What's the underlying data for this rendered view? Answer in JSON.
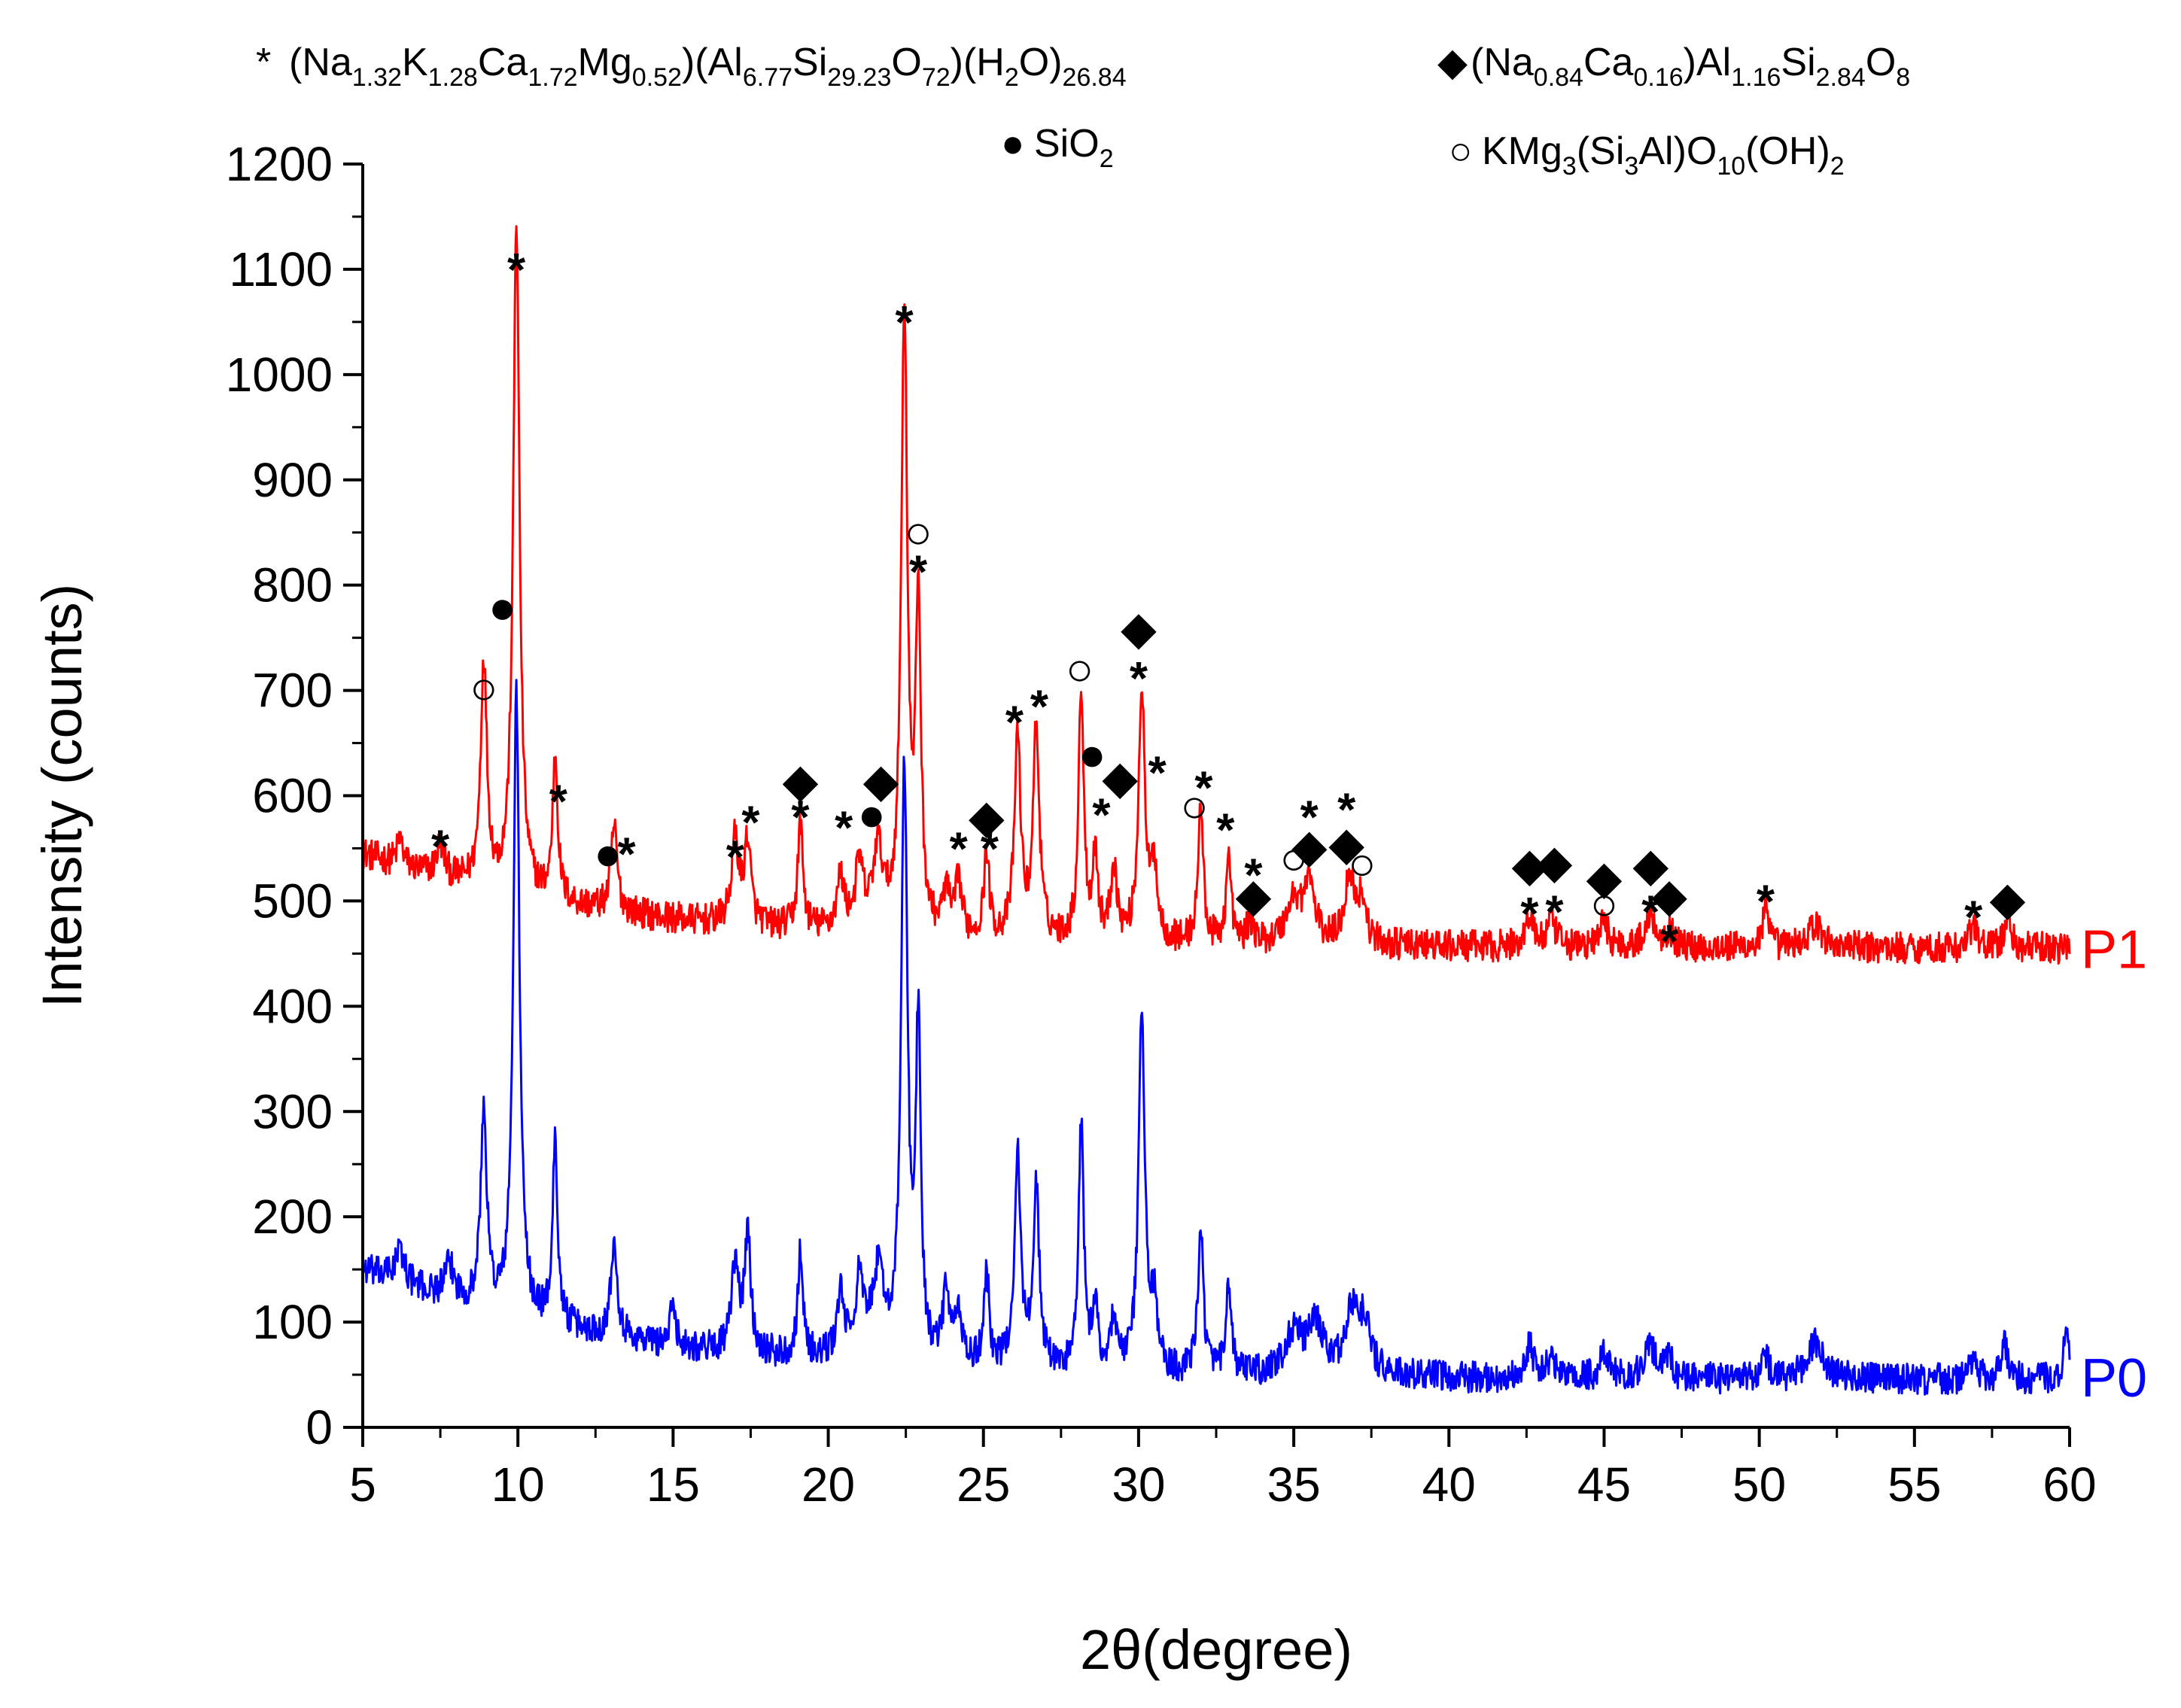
{
  "chart_data": {
    "type": "line",
    "title": "",
    "xlabel": "2θ(degree)",
    "ylabel": "Intensity (counts)",
    "xlim": [
      5,
      60
    ],
    "ylim": [
      0,
      1200
    ],
    "xticks": [
      5,
      10,
      15,
      20,
      25,
      30,
      35,
      40,
      45,
      50,
      55,
      60
    ],
    "yticks": [
      0,
      100,
      200,
      300,
      400,
      500,
      600,
      700,
      800,
      900,
      1000,
      1100,
      1200
    ],
    "baselines": {
      "P1": 455,
      "P0": 50
    },
    "legend": [
      {
        "symbol": "*",
        "name": "asterisk",
        "parts": [
          [
            "n",
            "(Na"
          ],
          [
            "s",
            "1.32"
          ],
          [
            "n",
            "K"
          ],
          [
            "s",
            "1.28"
          ],
          [
            "n",
            "Ca"
          ],
          [
            "s",
            "1.72"
          ],
          [
            "n",
            "Mg"
          ],
          [
            "s",
            "0.52"
          ],
          [
            "n",
            ")(Al"
          ],
          [
            "s",
            "6.77"
          ],
          [
            "n",
            "Si"
          ],
          [
            "s",
            "29.23"
          ],
          [
            "n",
            "O"
          ],
          [
            "s",
            "72"
          ],
          [
            "n",
            ")(H"
          ],
          [
            "s",
            "2"
          ],
          [
            "n",
            "O)"
          ],
          [
            "s",
            "26.84"
          ]
        ]
      },
      {
        "symbol": "◆",
        "name": "diamond",
        "parts": [
          [
            "n",
            "(Na"
          ],
          [
            "s",
            "0.84"
          ],
          [
            "n",
            "Ca"
          ],
          [
            "s",
            "0.16"
          ],
          [
            "n",
            ")Al"
          ],
          [
            "s",
            "1.16"
          ],
          [
            "n",
            "Si"
          ],
          [
            "s",
            "2.84"
          ],
          [
            "n",
            "O"
          ],
          [
            "s",
            "8"
          ]
        ]
      },
      {
        "symbol": "●",
        "name": "filled-circle",
        "parts": [
          [
            "n",
            "SiO"
          ],
          [
            "s",
            "2"
          ]
        ]
      },
      {
        "symbol": "○",
        "name": "open-circle",
        "parts": [
          [
            "n",
            "KMg"
          ],
          [
            "s",
            "3"
          ],
          [
            "n",
            "(Si"
          ],
          [
            "s",
            "3"
          ],
          [
            "n",
            "Al)O"
          ],
          [
            "s",
            "10"
          ],
          [
            "n",
            "(OH)"
          ],
          [
            "s",
            "2"
          ]
        ]
      }
    ],
    "series": [
      {
        "name": "P1",
        "color": "#ff0000",
        "start_value": 545,
        "end_value": 455,
        "peaks": [
          [
            6.2,
            25,
            0.12
          ],
          [
            7.5,
            30,
            0.15
          ],
          [
            8.9,
            215,
            0.12
          ],
          [
            9.95,
            640,
            0.12
          ],
          [
            11.2,
            135,
            0.1
          ],
          [
            13.1,
            80,
            0.12
          ],
          [
            17.0,
            80,
            0.14
          ],
          [
            17.4,
            80,
            0.12
          ],
          [
            19.1,
            100,
            0.1
          ],
          [
            20.4,
            50,
            0.14
          ],
          [
            21.0,
            60,
            0.15
          ],
          [
            21.6,
            75,
            0.2
          ],
          [
            22.45,
            590,
            0.12
          ],
          [
            22.9,
            310,
            0.1
          ],
          [
            23.8,
            40,
            0.12
          ],
          [
            24.2,
            50,
            0.12
          ],
          [
            25.1,
            80,
            0.1
          ],
          [
            26.1,
            190,
            0.12
          ],
          [
            26.7,
            200,
            0.12
          ],
          [
            28.15,
            240,
            0.1
          ],
          [
            28.6,
            80,
            0.1
          ],
          [
            29.2,
            70,
            0.12
          ],
          [
            30.1,
            240,
            0.12
          ],
          [
            30.5,
            70,
            0.12
          ],
          [
            32.0,
            130,
            0.1
          ],
          [
            32.9,
            80,
            0.1
          ],
          [
            33.6,
            20,
            0.12
          ],
          [
            35.0,
            40,
            0.3
          ],
          [
            35.5,
            55,
            0.2
          ],
          [
            36.8,
            65,
            0.2
          ],
          [
            37.2,
            40,
            0.15
          ],
          [
            42.6,
            30,
            0.15
          ],
          [
            43.3,
            25,
            0.15
          ],
          [
            45.0,
            25,
            0.15
          ],
          [
            46.5,
            30,
            0.2
          ],
          [
            47.1,
            15,
            0.15
          ],
          [
            50.2,
            35,
            0.12
          ],
          [
            51.8,
            20,
            0.3
          ],
          [
            56.9,
            25,
            0.12
          ],
          [
            58.0,
            30,
            0.12
          ]
        ]
      },
      {
        "name": "P0",
        "color": "#0000ff",
        "start_value": 150,
        "end_value": 45,
        "peaks": [
          [
            6.2,
            30,
            0.2
          ],
          [
            7.8,
            30,
            0.2
          ],
          [
            8.9,
            185,
            0.12
          ],
          [
            9.95,
            590,
            0.12
          ],
          [
            11.2,
            170,
            0.1
          ],
          [
            13.1,
            95,
            0.12
          ],
          [
            15.0,
            40,
            0.1
          ],
          [
            17.0,
            80,
            0.14
          ],
          [
            17.4,
            110,
            0.12
          ],
          [
            19.1,
            100,
            0.1
          ],
          [
            20.4,
            60,
            0.14
          ],
          [
            21.0,
            70,
            0.15
          ],
          [
            21.6,
            80,
            0.25
          ],
          [
            22.45,
            560,
            0.12
          ],
          [
            22.9,
            310,
            0.1
          ],
          [
            23.8,
            70,
            0.12
          ],
          [
            24.2,
            50,
            0.12
          ],
          [
            25.1,
            90,
            0.1
          ],
          [
            26.1,
            200,
            0.12
          ],
          [
            26.7,
            170,
            0.12
          ],
          [
            28.15,
            230,
            0.1
          ],
          [
            28.6,
            60,
            0.1
          ],
          [
            29.2,
            50,
            0.12
          ],
          [
            30.1,
            340,
            0.12
          ],
          [
            30.5,
            60,
            0.12
          ],
          [
            32.0,
            145,
            0.1
          ],
          [
            32.9,
            80,
            0.1
          ],
          [
            35.0,
            40,
            0.3
          ],
          [
            35.7,
            45,
            0.3
          ],
          [
            36.9,
            60,
            0.3
          ],
          [
            37.3,
            40,
            0.2
          ],
          [
            42.6,
            30,
            0.15
          ],
          [
            43.3,
            20,
            0.15
          ],
          [
            45.0,
            25,
            0.15
          ],
          [
            46.5,
            30,
            0.25
          ],
          [
            47.1,
            15,
            0.15
          ],
          [
            50.2,
            20,
            0.15
          ],
          [
            51.8,
            35,
            0.3
          ],
          [
            56.9,
            15,
            0.15
          ],
          [
            57.9,
            35,
            0.12
          ],
          [
            59.9,
            40,
            0.12
          ]
        ]
      }
    ],
    "annotations": [
      {
        "x": 7.5,
        "y": 562,
        "s": "*"
      },
      {
        "x": 8.9,
        "y": 700,
        "s": "○"
      },
      {
        "x": 9.5,
        "y": 777,
        "s": "●"
      },
      {
        "x": 9.95,
        "y": 1110,
        "s": "*"
      },
      {
        "x": 11.3,
        "y": 605,
        "s": "*"
      },
      {
        "x": 12.9,
        "y": 543,
        "s": "●"
      },
      {
        "x": 13.5,
        "y": 555,
        "s": "*"
      },
      {
        "x": 17.0,
        "y": 552,
        "s": "*"
      },
      {
        "x": 17.5,
        "y": 585,
        "s": "*"
      },
      {
        "x": 19.1,
        "y": 612,
        "s": "◆"
      },
      {
        "x": 19.1,
        "y": 590,
        "s": "*"
      },
      {
        "x": 20.5,
        "y": 580,
        "s": "*"
      },
      {
        "x": 21.4,
        "y": 580,
        "s": "●"
      },
      {
        "x": 21.7,
        "y": 612,
        "s": "◆"
      },
      {
        "x": 22.45,
        "y": 1060,
        "s": "*"
      },
      {
        "x": 22.9,
        "y": 848,
        "s": "○"
      },
      {
        "x": 22.9,
        "y": 823,
        "s": "*"
      },
      {
        "x": 24.2,
        "y": 560,
        "s": "*"
      },
      {
        "x": 25.1,
        "y": 578,
        "s": "◆"
      },
      {
        "x": 25.2,
        "y": 560,
        "s": "*"
      },
      {
        "x": 26.0,
        "y": 680,
        "s": "*"
      },
      {
        "x": 26.8,
        "y": 695,
        "s": "*"
      },
      {
        "x": 28.1,
        "y": 718,
        "s": "○"
      },
      {
        "x": 28.5,
        "y": 637,
        "s": "●"
      },
      {
        "x": 28.8,
        "y": 592,
        "s": "*"
      },
      {
        "x": 29.4,
        "y": 615,
        "s": "◆"
      },
      {
        "x": 30.0,
        "y": 757,
        "s": "◆"
      },
      {
        "x": 30.0,
        "y": 722,
        "s": "*"
      },
      {
        "x": 30.6,
        "y": 632,
        "s": "*"
      },
      {
        "x": 31.8,
        "y": 588,
        "s": "○"
      },
      {
        "x": 32.1,
        "y": 618,
        "s": "*"
      },
      {
        "x": 32.8,
        "y": 578,
        "s": "*"
      },
      {
        "x": 33.7,
        "y": 503,
        "s": "◆"
      },
      {
        "x": 33.7,
        "y": 535,
        "s": "*"
      },
      {
        "x": 35.0,
        "y": 538,
        "s": "○"
      },
      {
        "x": 35.5,
        "y": 550,
        "s": "◆"
      },
      {
        "x": 35.5,
        "y": 590,
        "s": "*"
      },
      {
        "x": 36.7,
        "y": 552,
        "s": "◆"
      },
      {
        "x": 36.7,
        "y": 597,
        "s": "*"
      },
      {
        "x": 37.2,
        "y": 533,
        "s": "○"
      },
      {
        "x": 42.6,
        "y": 532,
        "s": "◆"
      },
      {
        "x": 42.6,
        "y": 498,
        "s": "*"
      },
      {
        "x": 43.4,
        "y": 535,
        "s": "◆"
      },
      {
        "x": 43.4,
        "y": 500,
        "s": "*"
      },
      {
        "x": 45.0,
        "y": 520,
        "s": "◆"
      },
      {
        "x": 45.0,
        "y": 495,
        "s": "○"
      },
      {
        "x": 46.5,
        "y": 532,
        "s": "◆"
      },
      {
        "x": 46.5,
        "y": 500,
        "s": "*"
      },
      {
        "x": 47.1,
        "y": 503,
        "s": "◆"
      },
      {
        "x": 47.1,
        "y": 472,
        "s": "*"
      },
      {
        "x": 50.2,
        "y": 510,
        "s": "*"
      },
      {
        "x": 56.9,
        "y": 495,
        "s": "*"
      },
      {
        "x": 58.0,
        "y": 500,
        "s": "◆"
      }
    ]
  }
}
